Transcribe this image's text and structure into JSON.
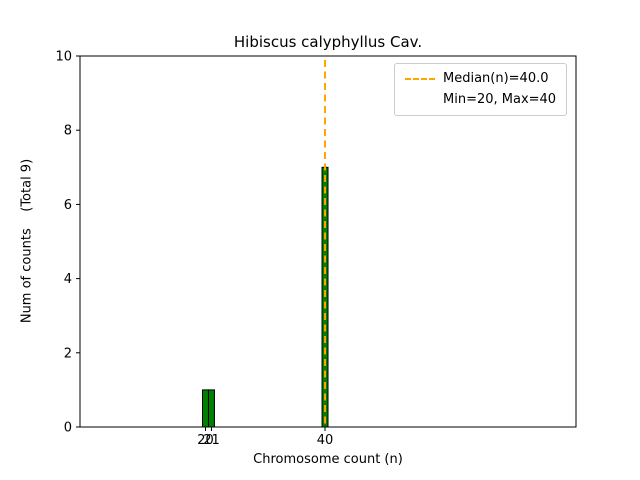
{
  "chart_data": {
    "type": "bar",
    "title": "Hibiscus calyphyllus Cav.",
    "xlabel": "Chromosome count (n)",
    "ylabel": "Num of counts    (Total 9)",
    "bars": [
      {
        "x": 20,
        "count": 1
      },
      {
        "x": 21,
        "count": 1
      },
      {
        "x": 40,
        "count": 7
      }
    ],
    "bin_width": 1,
    "total_counts": 9,
    "median": 40.0,
    "min": 20,
    "max": 40,
    "xlim": [
      -1,
      82
    ],
    "ylim": [
      0,
      10
    ],
    "yticks": [
      0,
      2,
      4,
      6,
      8,
      10
    ],
    "xticks": [
      20,
      21,
      40
    ],
    "bar_color": "#008000",
    "bar_edge_color": "#000000",
    "median_line_color": "#ffa500",
    "grid": false,
    "legend_position": "upper right",
    "legend": [
      "Median(n)=40.0",
      "Min=20, Max=40"
    ]
  }
}
